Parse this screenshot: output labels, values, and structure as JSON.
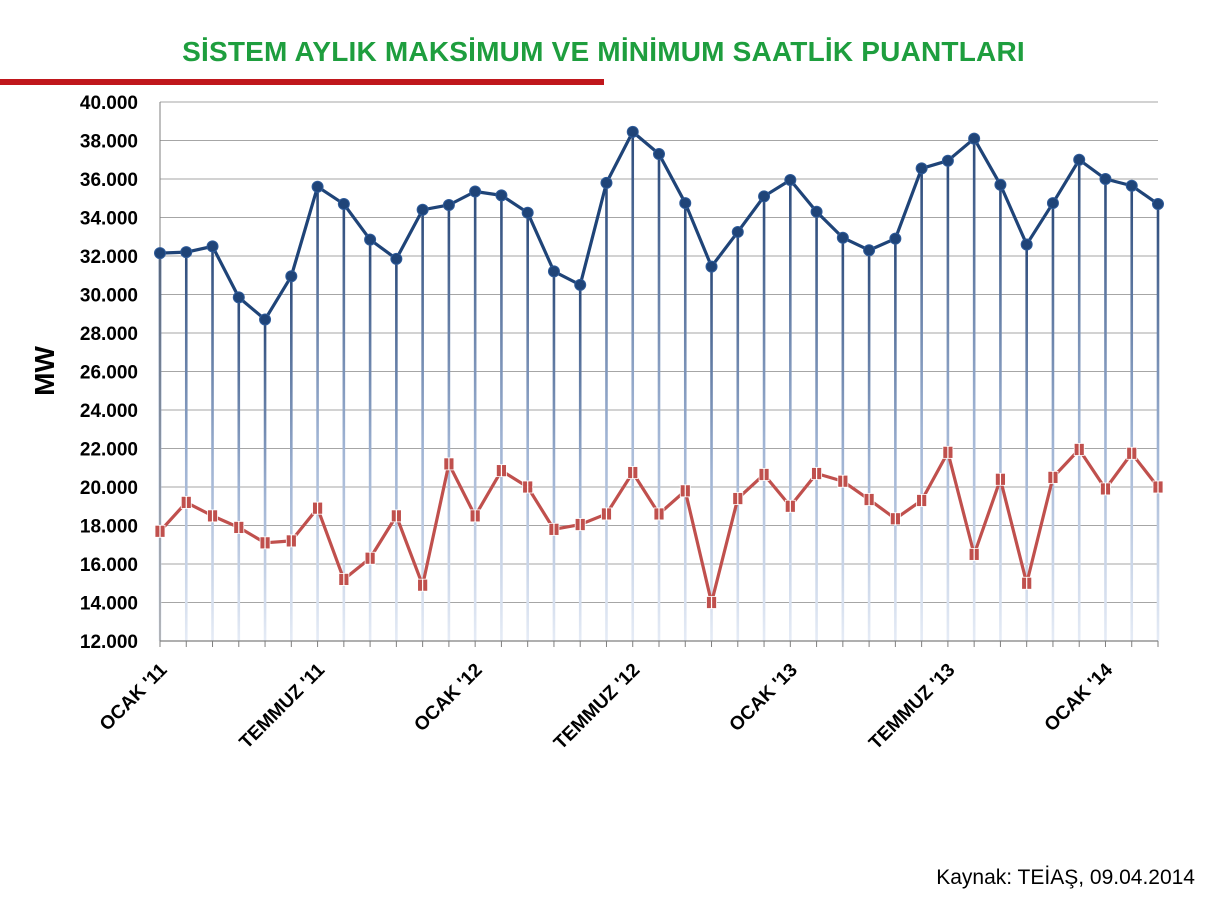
{
  "chart_data": {
    "type": "line",
    "title": "SİSTEM AYLIK MAKSİMUM VE MİNİMUM SAATLİK PUANTLARI",
    "ylabel": "MW",
    "xlabel": "",
    "ylim": [
      12000,
      40000
    ],
    "ytick_step": 2000,
    "ytick_labels": [
      "12.000",
      "14.000",
      "16.000",
      "18.000",
      "20.000",
      "22.000",
      "24.000",
      "26.000",
      "28.000",
      "30.000",
      "32.000",
      "34.000",
      "36.000",
      "38.000",
      "40.000"
    ],
    "x_tick_labels": [
      {
        "index": 0,
        "label": "OCAK '11"
      },
      {
        "index": 6,
        "label": "TEMMUZ '11"
      },
      {
        "index": 12,
        "label": "OCAK '12"
      },
      {
        "index": 18,
        "label": "TEMMUZ '12"
      },
      {
        "index": 24,
        "label": "OCAK '13"
      },
      {
        "index": 30,
        "label": "TEMMUZ '13"
      },
      {
        "index": 36,
        "label": "OCAK '14"
      }
    ],
    "grid": true,
    "series": [
      {
        "color": "#1f4478",
        "marker": "circle",
        "values": [
          32150,
          32200,
          32500,
          29850,
          28700,
          30950,
          35600,
          34700,
          32850,
          31850,
          34400,
          34650,
          35350,
          35150,
          34250,
          31200,
          30500,
          35800,
          38450,
          37300,
          34750,
          31450,
          33250,
          35100,
          35950,
          34300,
          32950,
          32300,
          32900,
          36550,
          36950,
          38100,
          35700,
          32600,
          34750,
          37000,
          36000,
          35650,
          34700
        ]
      },
      {
        "color": "#c0504d",
        "marker": "square",
        "values": [
          17700,
          19200,
          18500,
          17900,
          17100,
          17200,
          18900,
          15200,
          16300,
          18500,
          14900,
          21200,
          18500,
          20850,
          20000,
          17800,
          18050,
          18600,
          20750,
          18600,
          19800,
          14000,
          19400,
          20650,
          19000,
          20700,
          20300,
          19350,
          18350,
          19300,
          21800,
          16500,
          20400,
          15000,
          20500,
          21950,
          19900,
          21750,
          20000
        ]
      }
    ]
  },
  "source": "Kaynak: TEİAŞ, 09.04.2014"
}
